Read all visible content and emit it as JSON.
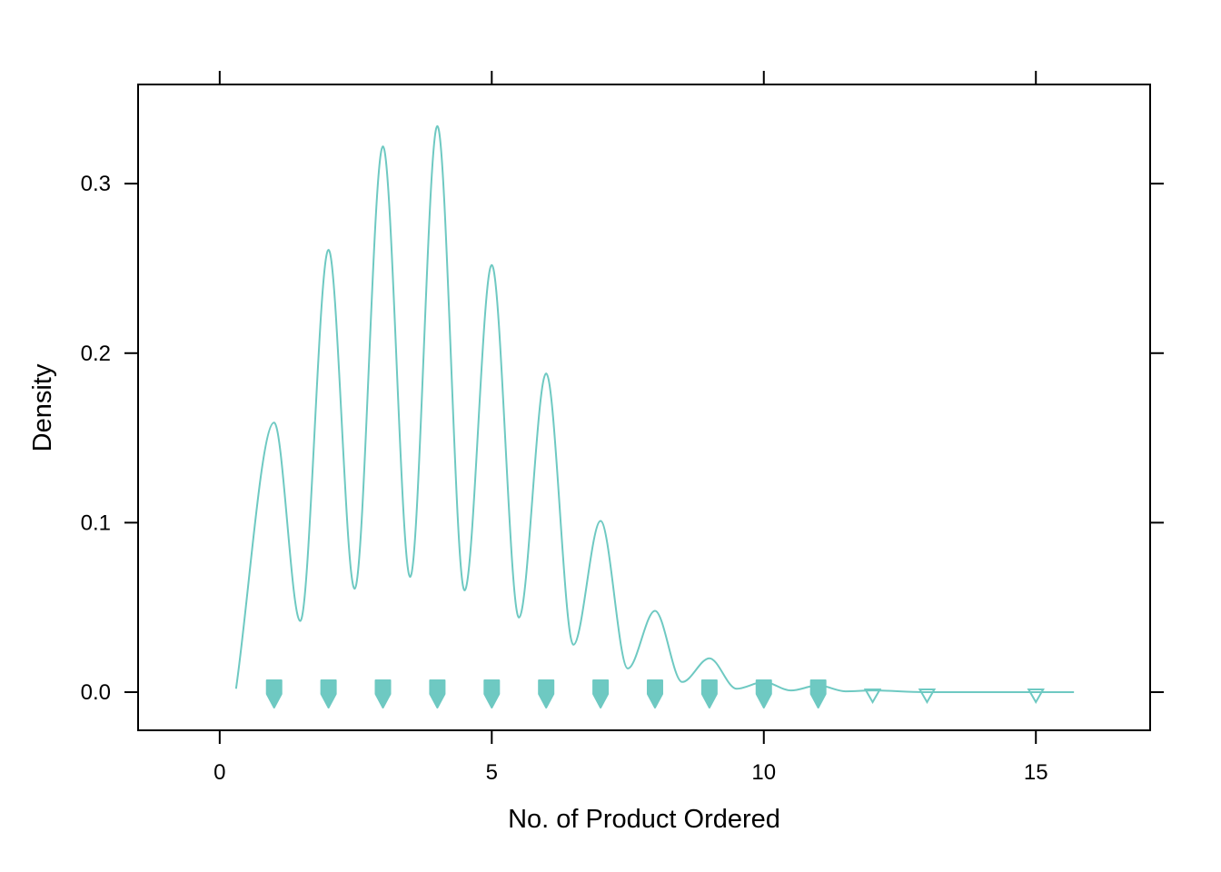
{
  "chart_data": {
    "type": "density",
    "title": "",
    "xlabel": "No. of Product Ordered",
    "ylabel": "Density",
    "xlim": [
      -1.5,
      17.1
    ],
    "ylim": [
      -0.0225,
      0.3585
    ],
    "xticks": [
      {
        "value": 0,
        "label": "0"
      },
      {
        "value": 5,
        "label": "5"
      },
      {
        "value": 10,
        "label": "10"
      },
      {
        "value": 15,
        "label": "15"
      }
    ],
    "yticks": [
      {
        "value": 0.0,
        "label": "0.0"
      },
      {
        "value": 0.1,
        "label": "0.1"
      },
      {
        "value": 0.2,
        "label": "0.2"
      },
      {
        "value": 0.3,
        "label": "0.3"
      }
    ],
    "grid": false,
    "series": [
      {
        "color": "#6EC9C2",
        "density_curve": {
          "x": [
            0.3,
            1.0,
            1.48,
            2.0,
            2.48,
            3.0,
            3.5,
            4.0,
            4.5,
            5.0,
            5.5,
            6.0,
            6.5,
            7.0,
            7.5,
            8.0,
            8.5,
            9.0,
            9.5,
            10.0,
            10.5,
            11.0,
            11.5,
            12.0,
            13.0,
            15.0,
            15.7
          ],
          "y": [
            0.002,
            0.159,
            0.042,
            0.261,
            0.061,
            0.322,
            0.068,
            0.334,
            0.06,
            0.252,
            0.044,
            0.188,
            0.028,
            0.101,
            0.014,
            0.048,
            0.006,
            0.02,
            0.002,
            0.006,
            0.001,
            0.004,
            0.0005,
            0.001,
            0.0,
            0.0,
            0.0
          ]
        },
        "rug_points": [
          {
            "x": 1,
            "style": "dense"
          },
          {
            "x": 2,
            "style": "dense"
          },
          {
            "x": 3,
            "style": "dense"
          },
          {
            "x": 4,
            "style": "dense"
          },
          {
            "x": 5,
            "style": "dense"
          },
          {
            "x": 6,
            "style": "dense"
          },
          {
            "x": 7,
            "style": "dense"
          },
          {
            "x": 8,
            "style": "dense"
          },
          {
            "x": 9,
            "style": "dense"
          },
          {
            "x": 10,
            "style": "dense"
          },
          {
            "x": 11,
            "style": "dense"
          },
          {
            "x": 12,
            "style": "sparse"
          },
          {
            "x": 13,
            "style": "sparse"
          },
          {
            "x": 15,
            "style": "sparse"
          }
        ]
      }
    ]
  }
}
